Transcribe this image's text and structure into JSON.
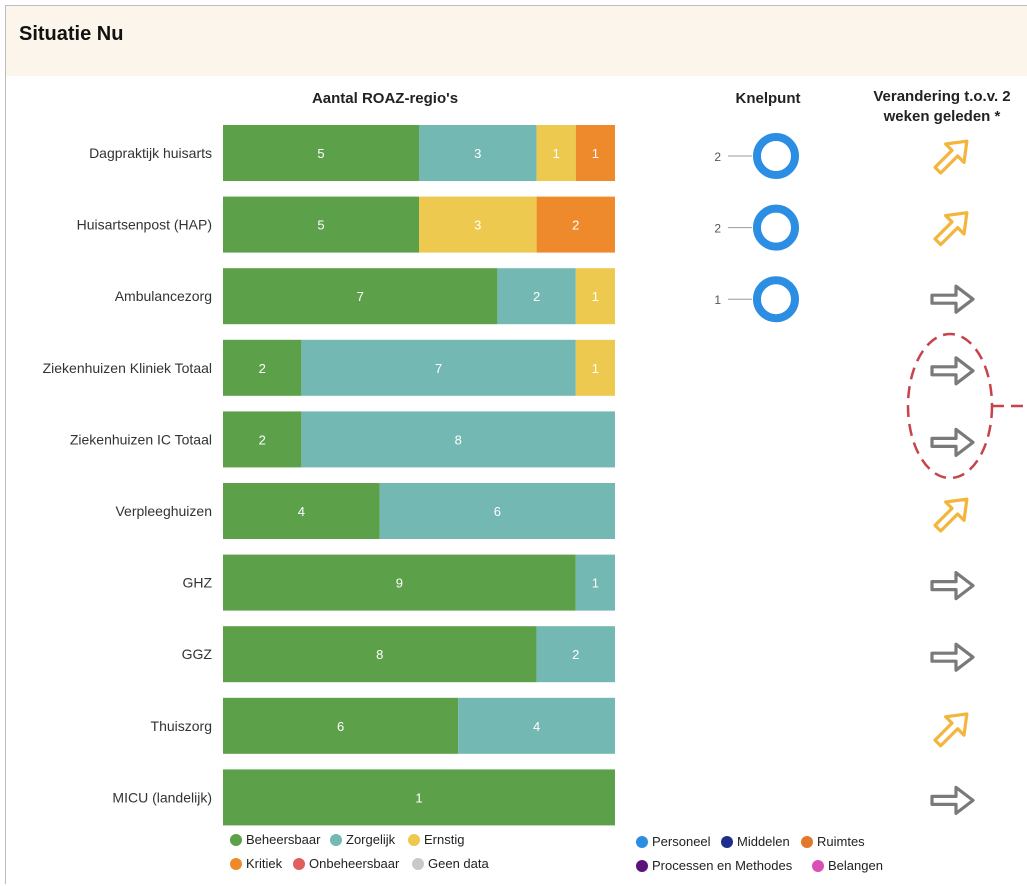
{
  "title": "Situatie Nu",
  "headers": {
    "bars": "Aantal ROAZ-regio's",
    "knelpunt": "Knelpunt",
    "change_line1": "Verandering t.o.v. 2",
    "change_line2": "weken geleden *"
  },
  "chart_data": {
    "type": "bar",
    "orientation": "horizontal-stacked",
    "categories": [
      "Dagpraktijk huisarts",
      "Huisartsenpost (HAP)",
      "Ambulancezorg",
      "Ziekenhuizen Kliniek Totaal",
      "Ziekenhuizen IC Totaal",
      "Verpleeghuizen",
      "GHZ",
      "GGZ",
      "Thuiszorg",
      "MICU (landelijk)"
    ],
    "series": [
      {
        "name": "Beheersbaar",
        "color": "#5da04a",
        "values": [
          5,
          5,
          7,
          2,
          2,
          4,
          9,
          8,
          6,
          1
        ]
      },
      {
        "name": "Zorgelijk",
        "color": "#74b8b3",
        "values": [
          3,
          0,
          2,
          7,
          8,
          6,
          1,
          2,
          4,
          0
        ]
      },
      {
        "name": "Ernstig",
        "color": "#edc94f",
        "values": [
          1,
          3,
          1,
          1,
          0,
          0,
          0,
          0,
          0,
          0
        ]
      },
      {
        "name": "Kritiek",
        "color": "#ee8a2c",
        "values": [
          1,
          2,
          0,
          0,
          0,
          0,
          0,
          0,
          0,
          0
        ]
      },
      {
        "name": "Onbeheersbaar",
        "color": "#df5e5e",
        "values": [
          0,
          0,
          0,
          0,
          0,
          0,
          0,
          0,
          0,
          0
        ]
      },
      {
        "name": "Geen data",
        "color": "#c8c8c8",
        "values": [
          0,
          0,
          0,
          0,
          0,
          0,
          0,
          0,
          0,
          0
        ]
      }
    ],
    "knelpunt": [
      {
        "value": 2,
        "label": "2",
        "category": "Personeel"
      },
      {
        "value": 2,
        "label": "2",
        "category": "Personeel"
      },
      {
        "value": 1,
        "label": "1",
        "category": "Personeel"
      },
      null,
      null,
      null,
      null,
      null,
      null,
      null
    ],
    "change": [
      "up",
      "up",
      "same",
      "same",
      "same",
      "up",
      "same",
      "same",
      "up",
      "same"
    ],
    "change_colors": {
      "up": "#f4b53d",
      "same": "#7a7a7a"
    },
    "knelpunt_legend": [
      {
        "name": "Personeel",
        "color": "#2b8ee3"
      },
      {
        "name": "Middelen",
        "color": "#1d2f8c"
      },
      {
        "name": "Ruimtes",
        "color": "#e2782c"
      },
      {
        "name": "Processen en Methodes",
        "color": "#5a137a"
      },
      {
        "name": "Belangen",
        "color": "#d84fb6"
      }
    ]
  }
}
